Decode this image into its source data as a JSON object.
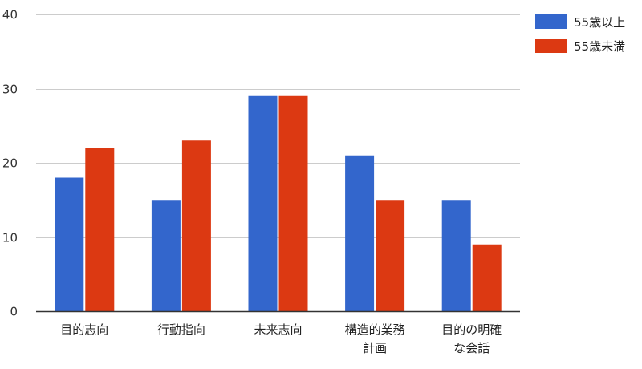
{
  "chart_data": {
    "type": "bar",
    "categories": [
      "目的志向",
      "行動指向",
      "未来志向",
      "構造的業務計画",
      "目的の明確な会話"
    ],
    "category_lines": [
      [
        "目的志向"
      ],
      [
        "行動指向"
      ],
      [
        "未来志向"
      ],
      [
        "構造的業務",
        "計画"
      ],
      [
        "目的の明確",
        "な会話"
      ]
    ],
    "series": [
      {
        "name": "55歳以上",
        "color": "#3366cc",
        "values": [
          18,
          15,
          29,
          21,
          15
        ]
      },
      {
        "name": "55歳未満",
        "color": "#dc3912",
        "values": [
          22,
          23,
          29,
          15,
          9
        ]
      }
    ],
    "title": "",
    "xlabel": "",
    "ylabel": "",
    "ylim": [
      0,
      40
    ],
    "yticks": [
      0,
      10,
      20,
      30,
      40
    ],
    "grid": true,
    "legend_position": "right"
  }
}
